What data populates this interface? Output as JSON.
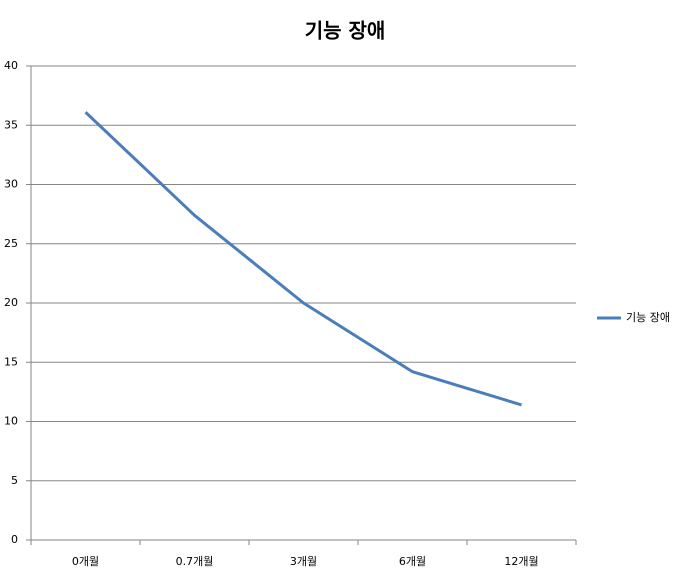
{
  "chart_data": {
    "type": "line",
    "title": "기능 장애",
    "categories": [
      "0개월",
      "0.7개월",
      "3개월",
      "6개월",
      "12개월"
    ],
    "series": [
      {
        "name": "기능 장애",
        "color": "#4a7ebb",
        "values": [
          36.1,
          27.4,
          20.0,
          14.2,
          11.4
        ]
      }
    ],
    "ylim": [
      0,
      40
    ],
    "yticks": [
      0,
      5,
      10,
      15,
      20,
      25,
      30,
      35,
      40
    ],
    "grid": true,
    "legend": "right"
  }
}
